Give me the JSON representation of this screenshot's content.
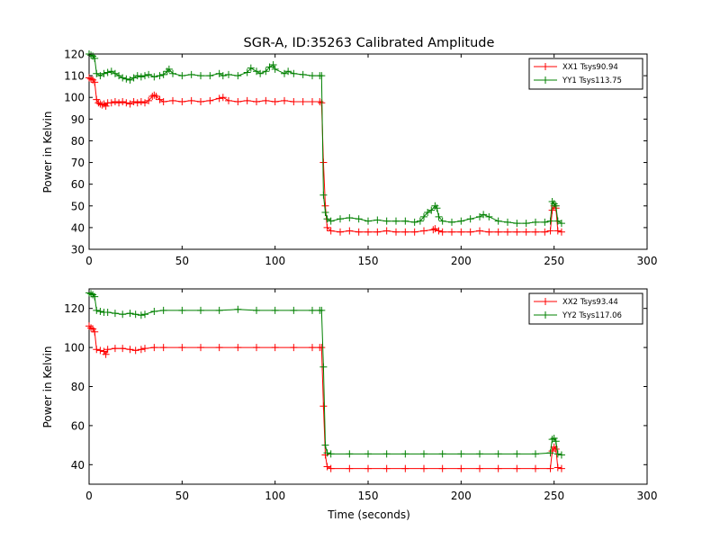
{
  "chart_data": [
    {
      "type": "line",
      "title": "SGR-A, ID:35263 Calibrated Amplitude",
      "xlabel": "",
      "ylabel": "Power in Kelvin",
      "xlim": [
        0,
        300
      ],
      "ylim": [
        30,
        120
      ],
      "xticks": [
        "0",
        "50",
        "100",
        "150",
        "200",
        "250",
        "300"
      ],
      "yticks": [
        "30",
        "40",
        "50",
        "60",
        "70",
        "80",
        "90",
        "100",
        "110",
        "120"
      ],
      "legend_position": "top-right",
      "marker": "+",
      "series": [
        {
          "name": "XX1 Tsys90.94",
          "color": "#ff0000",
          "points": [
            [
              0,
              109
            ],
            [
              1,
              108.5
            ],
            [
              2,
              108
            ],
            [
              3,
              107
            ],
            [
              4,
              99
            ],
            [
              5,
              97.5
            ],
            [
              6,
              97
            ],
            [
              7,
              96.5
            ],
            [
              8,
              97
            ],
            [
              9,
              96
            ],
            [
              10,
              97.5
            ],
            [
              12,
              97.5
            ],
            [
              14,
              98
            ],
            [
              16,
              97.5
            ],
            [
              18,
              98
            ],
            [
              20,
              97.5
            ],
            [
              22,
              97
            ],
            [
              24,
              98
            ],
            [
              26,
              97.5
            ],
            [
              28,
              98
            ],
            [
              30,
              97.5
            ],
            [
              32,
              98.5
            ],
            [
              34,
              100.5
            ],
            [
              35,
              101
            ],
            [
              36,
              100.5
            ],
            [
              38,
              99
            ],
            [
              40,
              98
            ],
            [
              45,
              98.5
            ],
            [
              50,
              98
            ],
            [
              55,
              98.5
            ],
            [
              60,
              98
            ],
            [
              65,
              98.5
            ],
            [
              70,
              99.5
            ],
            [
              72,
              100
            ],
            [
              75,
              98.5
            ],
            [
              80,
              98
            ],
            [
              85,
              98.5
            ],
            [
              90,
              98
            ],
            [
              95,
              98.5
            ],
            [
              100,
              98
            ],
            [
              105,
              98.5
            ],
            [
              110,
              98
            ],
            [
              115,
              98
            ],
            [
              120,
              98
            ],
            [
              124,
              98
            ],
            [
              125,
              97.5
            ],
            [
              126,
              70
            ],
            [
              127,
              50
            ],
            [
              128,
              40
            ],
            [
              130,
              38.5
            ],
            [
              135,
              38
            ],
            [
              140,
              38.5
            ],
            [
              145,
              38
            ],
            [
              150,
              38
            ],
            [
              155,
              38
            ],
            [
              160,
              38.5
            ],
            [
              165,
              38
            ],
            [
              170,
              38
            ],
            [
              175,
              38
            ],
            [
              180,
              38.5
            ],
            [
              185,
              39
            ],
            [
              186,
              39.5
            ],
            [
              188,
              38.5
            ],
            [
              190,
              38
            ],
            [
              195,
              38
            ],
            [
              200,
              38
            ],
            [
              205,
              38
            ],
            [
              210,
              38.5
            ],
            [
              215,
              38
            ],
            [
              220,
              38
            ],
            [
              225,
              38
            ],
            [
              230,
              38
            ],
            [
              235,
              38
            ],
            [
              240,
              38
            ],
            [
              245,
              38
            ],
            [
              248,
              38.5
            ],
            [
              249,
              48
            ],
            [
              250,
              50
            ],
            [
              251,
              49
            ],
            [
              252,
              38.5
            ],
            [
              254,
              38
            ]
          ]
        },
        {
          "name": "YY1 Tsys113.75",
          "color": "#008000",
          "points": [
            [
              0,
              120
            ],
            [
              1,
              119.5
            ],
            [
              2,
              119
            ],
            [
              3,
              118
            ],
            [
              4,
              111
            ],
            [
              6,
              110
            ],
            [
              8,
              111
            ],
            [
              10,
              111.5
            ],
            [
              12,
              112
            ],
            [
              14,
              111
            ],
            [
              16,
              110
            ],
            [
              18,
              109
            ],
            [
              20,
              108.5
            ],
            [
              22,
              108
            ],
            [
              24,
              109
            ],
            [
              26,
              110
            ],
            [
              28,
              109.5
            ],
            [
              30,
              110
            ],
            [
              32,
              110.5
            ],
            [
              35,
              109.5
            ],
            [
              38,
              110
            ],
            [
              40,
              110.5
            ],
            [
              42,
              112
            ],
            [
              43,
              113
            ],
            [
              45,
              111
            ],
            [
              50,
              110
            ],
            [
              55,
              110.5
            ],
            [
              60,
              110
            ],
            [
              65,
              110
            ],
            [
              70,
              111
            ],
            [
              72,
              110
            ],
            [
              75,
              110.5
            ],
            [
              80,
              110
            ],
            [
              85,
              111.5
            ],
            [
              87,
              113.5
            ],
            [
              90,
              112
            ],
            [
              92,
              111
            ],
            [
              95,
              112
            ],
            [
              97,
              114
            ],
            [
              99,
              115
            ],
            [
              100,
              113
            ],
            [
              105,
              111
            ],
            [
              107,
              112
            ],
            [
              110,
              111
            ],
            [
              115,
              110.5
            ],
            [
              120,
              110
            ],
            [
              124,
              110
            ],
            [
              125,
              110
            ],
            [
              126,
              55
            ],
            [
              127,
              47
            ],
            [
              128,
              44
            ],
            [
              130,
              43
            ],
            [
              135,
              44
            ],
            [
              140,
              44.5
            ],
            [
              145,
              44
            ],
            [
              150,
              43
            ],
            [
              155,
              43.5
            ],
            [
              160,
              43
            ],
            [
              165,
              43
            ],
            [
              170,
              43
            ],
            [
              175,
              42.5
            ],
            [
              178,
              43
            ],
            [
              180,
              45
            ],
            [
              182,
              47
            ],
            [
              184,
              48
            ],
            [
              186,
              50
            ],
            [
              187,
              49
            ],
            [
              188,
              45
            ],
            [
              190,
              43
            ],
            [
              195,
              42.5
            ],
            [
              200,
              43
            ],
            [
              205,
              44
            ],
            [
              210,
              45
            ],
            [
              212,
              46
            ],
            [
              215,
              45
            ],
            [
              220,
              43
            ],
            [
              225,
              42.5
            ],
            [
              230,
              42
            ],
            [
              235,
              42
            ],
            [
              240,
              42.5
            ],
            [
              245,
              42.5
            ],
            [
              248,
              43
            ],
            [
              249,
              52
            ],
            [
              250,
              51
            ],
            [
              251,
              50
            ],
            [
              252,
              43
            ],
            [
              254,
              42
            ]
          ]
        }
      ]
    },
    {
      "type": "line",
      "title": "",
      "xlabel": "Time (seconds)",
      "ylabel": "Power in Kelvin",
      "xlim": [
        0,
        300
      ],
      "ylim": [
        30,
        130
      ],
      "xticks": [
        "0",
        "50",
        "100",
        "150",
        "200",
        "250",
        "300"
      ],
      "yticks": [
        "40",
        "60",
        "80",
        "100",
        "120"
      ],
      "legend_position": "top-right",
      "marker": "+",
      "series": [
        {
          "name": "XX2 Tsys93.44",
          "color": "#ff0000",
          "points": [
            [
              0,
              111
            ],
            [
              1,
              110
            ],
            [
              2,
              109.5
            ],
            [
              3,
              108
            ],
            [
              4,
              99
            ],
            [
              6,
              98.5
            ],
            [
              8,
              98
            ],
            [
              9,
              96.5
            ],
            [
              10,
              99
            ],
            [
              14,
              99.5
            ],
            [
              18,
              99.5
            ],
            [
              22,
              99
            ],
            [
              25,
              98.5
            ],
            [
              28,
              99
            ],
            [
              30,
              99.5
            ],
            [
              35,
              100
            ],
            [
              40,
              100
            ],
            [
              50,
              100
            ],
            [
              60,
              100
            ],
            [
              70,
              100
            ],
            [
              80,
              100
            ],
            [
              90,
              100
            ],
            [
              100,
              100
            ],
            [
              110,
              100
            ],
            [
              120,
              100
            ],
            [
              124,
              100
            ],
            [
              125,
              100
            ],
            [
              126,
              70
            ],
            [
              127,
              45
            ],
            [
              128,
              39
            ],
            [
              130,
              38
            ],
            [
              140,
              38
            ],
            [
              150,
              38
            ],
            [
              160,
              38
            ],
            [
              170,
              38
            ],
            [
              180,
              38
            ],
            [
              190,
              38
            ],
            [
              200,
              38
            ],
            [
              210,
              38
            ],
            [
              220,
              38
            ],
            [
              230,
              38
            ],
            [
              240,
              38
            ],
            [
              248,
              38
            ],
            [
              249,
              47
            ],
            [
              250,
              49
            ],
            [
              251,
              48
            ],
            [
              252,
              38.5
            ],
            [
              254,
              38
            ]
          ]
        },
        {
          "name": "YY2 Tsys117.06",
          "color": "#008000",
          "points": [
            [
              0,
              128
            ],
            [
              1,
              127.5
            ],
            [
              2,
              127
            ],
            [
              3,
              126
            ],
            [
              4,
              119
            ],
            [
              6,
              118.5
            ],
            [
              8,
              118
            ],
            [
              10,
              118
            ],
            [
              14,
              117.5
            ],
            [
              18,
              117
            ],
            [
              22,
              117.5
            ],
            [
              25,
              117
            ],
            [
              28,
              116.5
            ],
            [
              30,
              117
            ],
            [
              35,
              118.5
            ],
            [
              40,
              119
            ],
            [
              50,
              119
            ],
            [
              60,
              119
            ],
            [
              70,
              119
            ],
            [
              80,
              119.5
            ],
            [
              90,
              119
            ],
            [
              100,
              119
            ],
            [
              110,
              119
            ],
            [
              120,
              119
            ],
            [
              124,
              119
            ],
            [
              125,
              119
            ],
            [
              126,
              90
            ],
            [
              127,
              50
            ],
            [
              128,
              46
            ],
            [
              130,
              45.5
            ],
            [
              140,
              45.5
            ],
            [
              150,
              45.5
            ],
            [
              160,
              45.5
            ],
            [
              170,
              45.5
            ],
            [
              180,
              45.5
            ],
            [
              190,
              45.5
            ],
            [
              200,
              45.5
            ],
            [
              210,
              45.5
            ],
            [
              220,
              45.5
            ],
            [
              230,
              45.5
            ],
            [
              240,
              45.5
            ],
            [
              248,
              46
            ],
            [
              249,
              53
            ],
            [
              250,
              53.5
            ],
            [
              251,
              52
            ],
            [
              252,
              45.5
            ],
            [
              254,
              45
            ]
          ]
        }
      ]
    }
  ]
}
